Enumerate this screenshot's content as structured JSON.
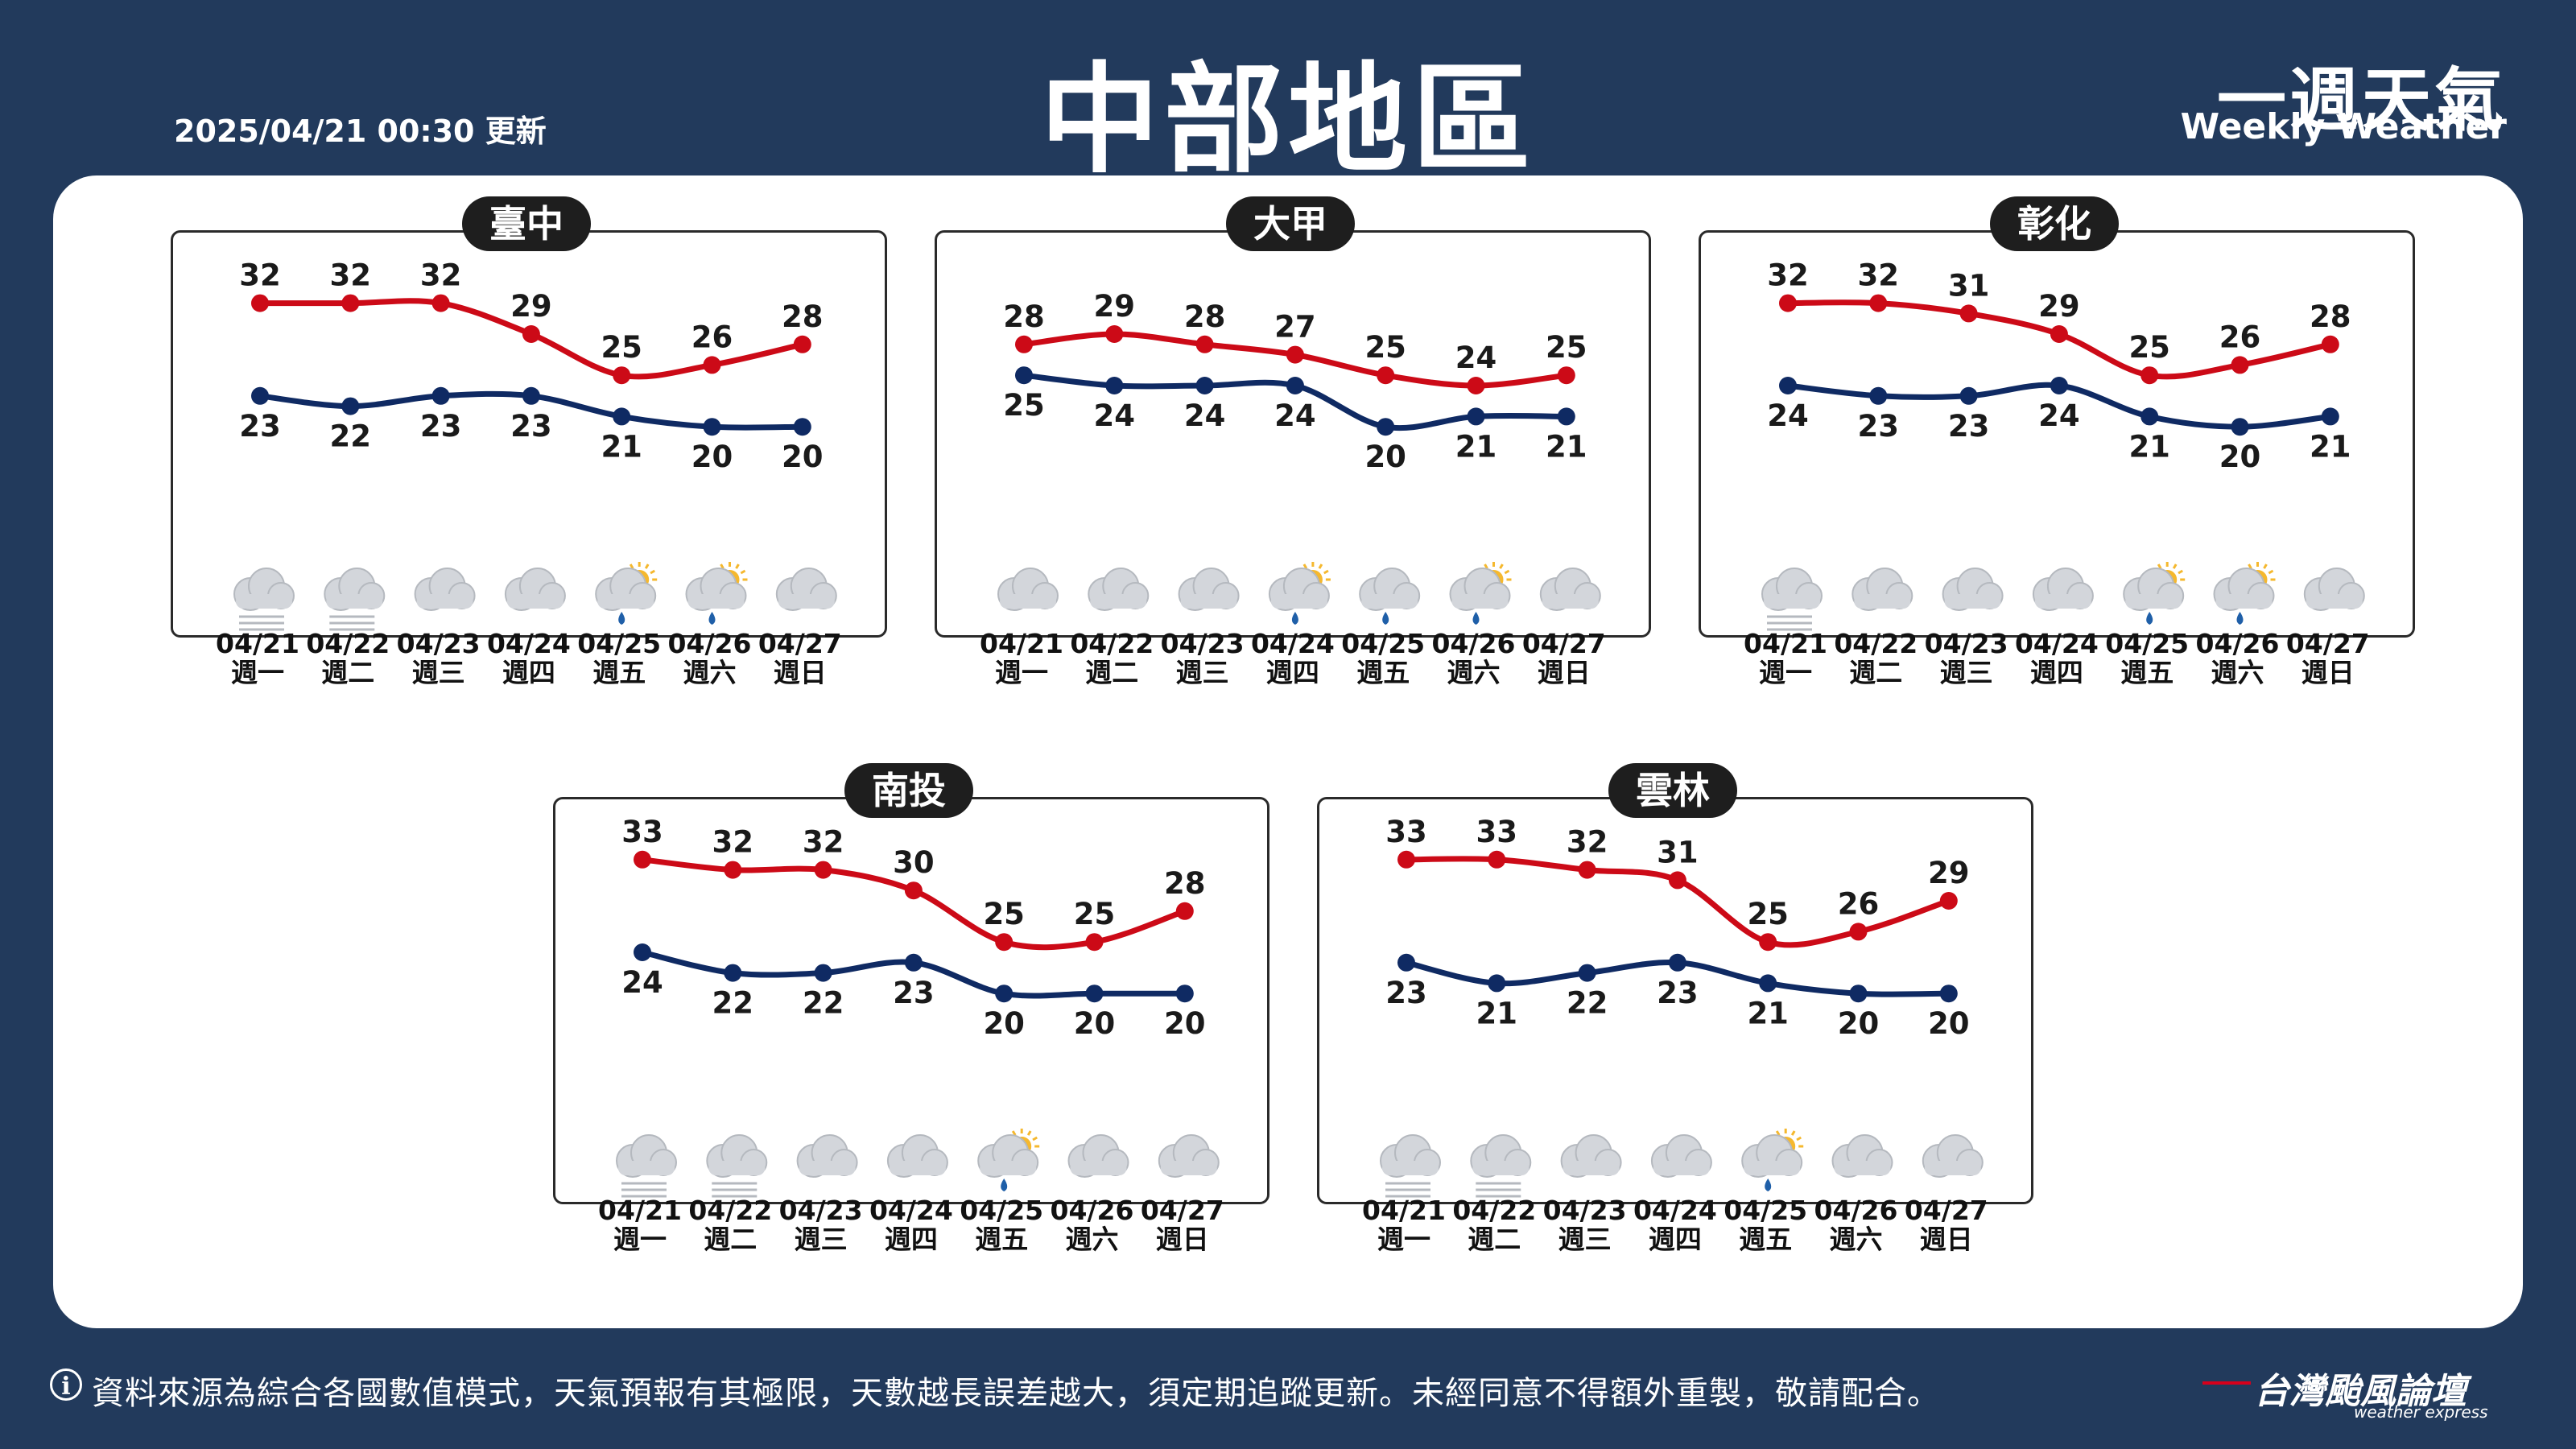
{
  "header": {
    "update_time": "2025/04/21 00:30 更新",
    "title": "中部地區",
    "brand_cn": "一週天氣",
    "brand_en": "Weekly Weather"
  },
  "colors": {
    "max_line": "#cc0a17",
    "min_line": "#0f2a63",
    "background": "#223a5c"
  },
  "footer": {
    "note": "資料來源為綜合各國數值模式，天氣預報有其極限，天數越長誤差越大，須定期追蹤更新。未經同意不得額外重製，敬請配合。",
    "logo_cn": "台灣颱風論壇",
    "logo_en": "weather express"
  },
  "chart_data": [
    {
      "type": "line",
      "station": "臺中",
      "categories": [
        "04/21",
        "04/22",
        "04/23",
        "04/24",
        "04/25",
        "04/26",
        "04/27"
      ],
      "weekdays": [
        "週一",
        "週二",
        "週三",
        "週四",
        "週五",
        "週六",
        "週日"
      ],
      "series": [
        {
          "values": [
            32,
            32,
            32,
            29,
            25,
            26,
            28
          ]
        },
        {
          "values": [
            23,
            22,
            23,
            23,
            21,
            20,
            20
          ]
        }
      ],
      "weather_icons": [
        "fog",
        "fog",
        "cloudy",
        "cloudy",
        "partly-sunny-rain",
        "partly-sunny-rain",
        "cloudy"
      ]
    },
    {
      "type": "line",
      "station": "大甲",
      "categories": [
        "04/21",
        "04/22",
        "04/23",
        "04/24",
        "04/25",
        "04/26",
        "04/27"
      ],
      "weekdays": [
        "週一",
        "週二",
        "週三",
        "週四",
        "週五",
        "週六",
        "週日"
      ],
      "series": [
        {
          "values": [
            28,
            29,
            28,
            27,
            25,
            24,
            25
          ]
        },
        {
          "values": [
            25,
            24,
            24,
            24,
            20,
            21,
            21
          ]
        }
      ],
      "weather_icons": [
        "cloudy",
        "cloudy",
        "cloudy",
        "partly-sunny-rain",
        "cloud-rain",
        "partly-sunny-rain",
        "cloudy"
      ]
    },
    {
      "type": "line",
      "station": "彰化",
      "categories": [
        "04/21",
        "04/22",
        "04/23",
        "04/24",
        "04/25",
        "04/26",
        "04/27"
      ],
      "weekdays": [
        "週一",
        "週二",
        "週三",
        "週四",
        "週五",
        "週六",
        "週日"
      ],
      "series": [
        {
          "values": [
            32,
            32,
            31,
            29,
            25,
            26,
            28
          ]
        },
        {
          "values": [
            24,
            23,
            23,
            24,
            21,
            20,
            21
          ]
        }
      ],
      "weather_icons": [
        "fog",
        "cloudy",
        "cloudy",
        "cloudy",
        "partly-sunny-rain",
        "partly-sunny-rain",
        "cloudy"
      ]
    },
    {
      "type": "line",
      "station": "南投",
      "categories": [
        "04/21",
        "04/22",
        "04/23",
        "04/24",
        "04/25",
        "04/26",
        "04/27"
      ],
      "weekdays": [
        "週一",
        "週二",
        "週三",
        "週四",
        "週五",
        "週六",
        "週日"
      ],
      "series": [
        {
          "values": [
            33,
            32,
            32,
            30,
            25,
            25,
            28
          ]
        },
        {
          "values": [
            24,
            22,
            22,
            23,
            20,
            20,
            20
          ]
        }
      ],
      "weather_icons": [
        "fog",
        "fog",
        "cloudy",
        "cloudy",
        "partly-sunny-rain",
        "cloudy",
        "cloudy"
      ]
    },
    {
      "type": "line",
      "station": "雲林",
      "categories": [
        "04/21",
        "04/22",
        "04/23",
        "04/24",
        "04/25",
        "04/26",
        "04/27"
      ],
      "weekdays": [
        "週一",
        "週二",
        "週三",
        "週四",
        "週五",
        "週六",
        "週日"
      ],
      "series": [
        {
          "values": [
            33,
            33,
            32,
            31,
            25,
            26,
            29
          ]
        },
        {
          "values": [
            23,
            21,
            22,
            23,
            21,
            20,
            20
          ]
        }
      ],
      "weather_icons": [
        "fog",
        "fog",
        "cloudy",
        "cloudy",
        "partly-sunny-rain",
        "cloudy",
        "cloudy"
      ]
    }
  ]
}
